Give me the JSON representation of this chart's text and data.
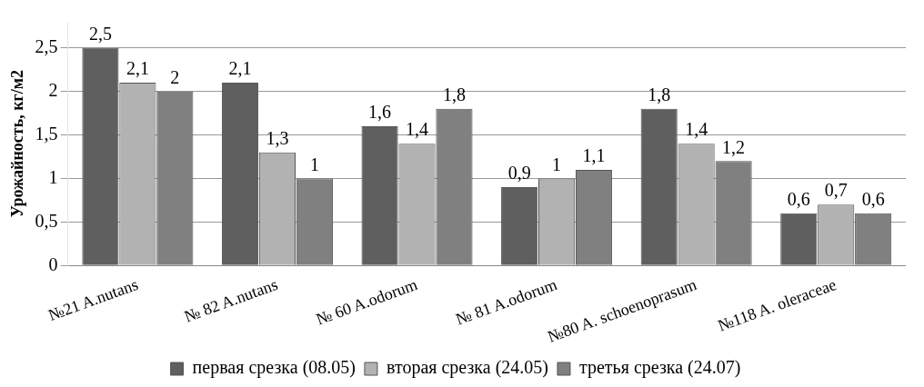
{
  "chart_data": {
    "type": "bar",
    "ylabel": "Урожайность, кг/м2",
    "categories": [
      "№21 A.nutans",
      "№ 82 A.nutans",
      "№ 60 A.odorum",
      "№ 81 A.odorum",
      "№80 A. schoenoprasum",
      "№118 A. oleraceae"
    ],
    "series": [
      {
        "name": "первая срезка (08.05)",
        "color": "#5f5f5f",
        "values": [
          2.5,
          2.1,
          1.6,
          0.9,
          1.8,
          0.6
        ],
        "value_labels": [
          "2,5",
          "2,1",
          "1,6",
          "0,9",
          "1,8",
          "0,6"
        ]
      },
      {
        "name": "вторая срезка (24.05)",
        "color": "#b2b2b2",
        "values": [
          2.1,
          1.3,
          1.4,
          1.0,
          1.4,
          0.7
        ],
        "value_labels": [
          "2,1",
          "1,3",
          "1,4",
          "1",
          "1,4",
          "0,7"
        ]
      },
      {
        "name": "третья срезка (24.07)",
        "color": "#808080",
        "values": [
          2.0,
          1.0,
          1.8,
          1.1,
          1.2,
          0.6
        ],
        "value_labels": [
          "2",
          "1",
          "1,8",
          "1,1",
          "1,2",
          "0,6"
        ]
      }
    ],
    "ylim": [
      0,
      2.8
    ],
    "yticks": [
      0,
      {
        "value": 0.5,
        "label": "0,5"
      },
      1,
      {
        "value": 1.5,
        "label": "1,5"
      },
      2,
      {
        "value": 2.5,
        "label": "2,5"
      }
    ],
    "grid": "y",
    "legend": "bottom"
  }
}
